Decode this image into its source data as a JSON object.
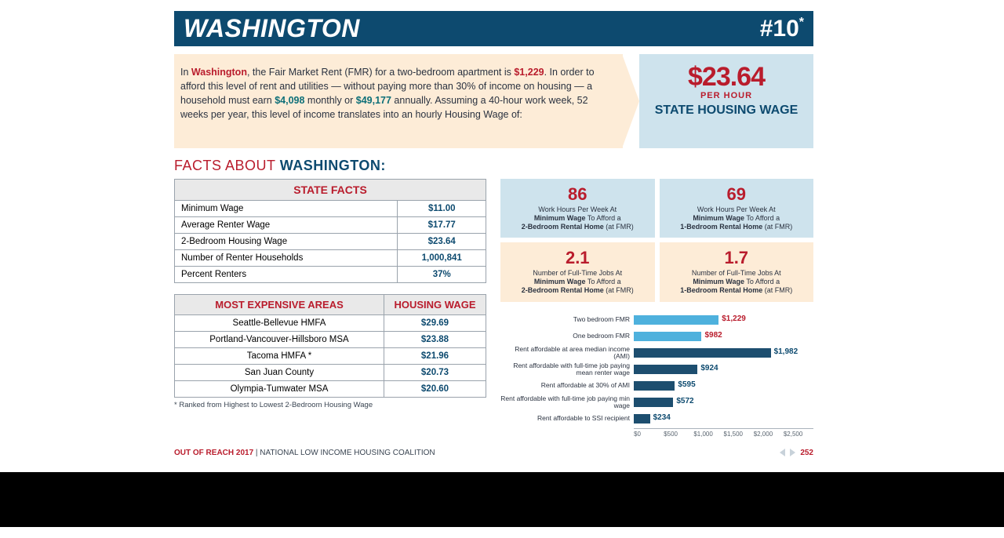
{
  "colors": {
    "header_bg": "#0d4a6f",
    "red": "#b91c2c",
    "cream": "#fdecd7",
    "lightblue": "#cee3ed",
    "navy": "#0d4a6f",
    "bar_dark": "#1d4e6f",
    "bar_light": "#4eb1dd"
  },
  "header": {
    "state": "WASHINGTON",
    "rank": "#10",
    "rank_star": "*"
  },
  "intro": {
    "pre1": "In ",
    "state": "Washington",
    "post1": ", the Fair Market Rent (FMR) for a two-bedroom apartment is ",
    "fmr": "$1,229",
    "post2": ". In order to afford this level of rent and utilities — without paying more than 30% of income on housing — a household must earn ",
    "monthly": "$4,098",
    "mid": " monthly or ",
    "annual": "$49,177",
    "post3": " annually. Assuming a 40-hour work week, 52 weeks per year, this level of income translates into an hourly Housing Wage of:"
  },
  "wage": {
    "amount": "$23.64",
    "per": "PER HOUR",
    "label": "STATE HOUSING WAGE"
  },
  "facts_title": {
    "pre": "FACTS ABOUT ",
    "state": "WASHINGTON:"
  },
  "state_facts": {
    "header": "STATE FACTS",
    "rows": [
      {
        "label": "Minimum Wage",
        "value": "$11.00"
      },
      {
        "label": "Average Renter Wage",
        "value": "$17.77"
      },
      {
        "label": "2-Bedroom Housing Wage",
        "value": "$23.64"
      },
      {
        "label": "Number of Renter Households",
        "value": "1,000,841"
      },
      {
        "label": "Percent Renters",
        "value": "37%"
      }
    ]
  },
  "areas": {
    "col1": "MOST EXPENSIVE AREAS",
    "col2": "HOUSING WAGE",
    "rows": [
      {
        "area": "Seattle-Bellevue HMFA",
        "wage": "$29.69"
      },
      {
        "area": "Portland-Vancouver-Hillsboro MSA",
        "wage": "$23.88"
      },
      {
        "area": "Tacoma HMFA *",
        "wage": "$21.96"
      },
      {
        "area": "San Juan County",
        "wage": "$20.73"
      },
      {
        "area": "Olympia-Tumwater MSA",
        "wage": "$20.60"
      }
    ],
    "note": "* Ranked from Highest to Lowest 2-Bedroom Housing Wage"
  },
  "stats": [
    {
      "bg": "blue",
      "value": "86",
      "line1": "Work Hours Per Week At",
      "line2b": "Minimum Wage",
      "line2": " To Afford a",
      "line3b": "2-Bedroom Rental Home",
      "line3": " (at FMR)"
    },
    {
      "bg": "blue",
      "value": "69",
      "line1": "Work Hours Per Week At",
      "line2b": "Minimum Wage",
      "line2": " To Afford a",
      "line3b": "1-Bedroom Rental Home",
      "line3": " (at FMR)"
    },
    {
      "bg": "cream",
      "value": "2.1",
      "line1": "Number of Full-Time Jobs At",
      "line2b": "Minimum Wage",
      "line2": " To Afford a",
      "line3b": "2-Bedroom Rental Home",
      "line3": " (at FMR)"
    },
    {
      "bg": "cream",
      "value": "1.7",
      "line1": "Number of Full-Time Jobs At",
      "line2b": "Minimum Wage",
      "line2": " To Afford a",
      "line3b": "1-Bedroom Rental Home",
      "line3": " (at FMR)"
    }
  ],
  "chart": {
    "xmax": 2600,
    "ticks": [
      "$0",
      "$500",
      "$1,000",
      "$1,500",
      "$2,000",
      "$2,500"
    ],
    "bars": [
      {
        "label": "Two bedroom FMR",
        "value": 1229,
        "vlabel": "$1,229",
        "color": "#4eb1dd",
        "vcolor": "#b91c2c"
      },
      {
        "label": "One bedroom FMR",
        "value": 982,
        "vlabel": "$982",
        "color": "#4eb1dd",
        "vcolor": "#b91c2c"
      },
      {
        "label": "Rent affordable at area median income (AMI)",
        "value": 1982,
        "vlabel": "$1,982",
        "color": "#1d4e6f",
        "vcolor": "#0d4a6f"
      },
      {
        "label": "Rent affordable with full-time job paying mean renter wage",
        "value": 924,
        "vlabel": "$924",
        "color": "#1d4e6f",
        "vcolor": "#0d4a6f"
      },
      {
        "label": "Rent affordable at 30% of AMI",
        "value": 595,
        "vlabel": "$595",
        "color": "#1d4e6f",
        "vcolor": "#0d4a6f"
      },
      {
        "label": "Rent affordable with full-time job paying min wage",
        "value": 572,
        "vlabel": "$572",
        "color": "#1d4e6f",
        "vcolor": "#0d4a6f"
      },
      {
        "label": "Rent affordable to SSI recipient",
        "value": 234,
        "vlabel": "$234",
        "color": "#1d4e6f",
        "vcolor": "#0d4a6f"
      }
    ]
  },
  "footer": {
    "bold": "OUT OF REACH 2017",
    "rest": " | NATIONAL LOW INCOME HOUSING COALITION",
    "page": "252"
  }
}
